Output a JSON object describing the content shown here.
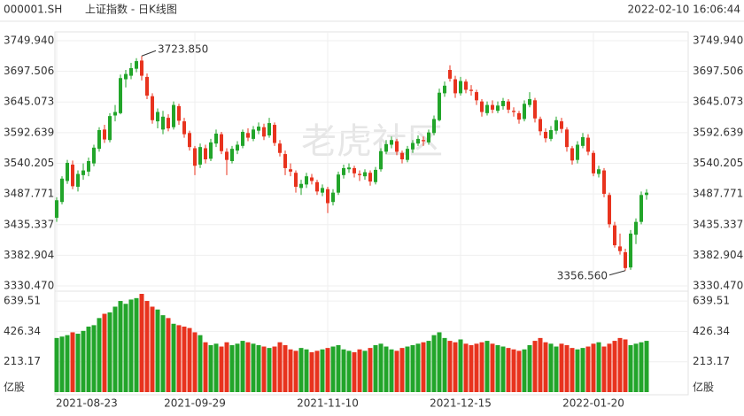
{
  "header": {
    "symbol": "000001.SH",
    "name": "上证指数 - 日K线图",
    "timestamp": "2022-02-10 16:06:44"
  },
  "watermark": "老虎社区",
  "chart_data": [
    {
      "type": "candlestick",
      "up_color": "#22a52a",
      "down_color": "#e8331e",
      "grid": true,
      "categories": [
        "2021-08-23",
        null,
        null,
        null,
        null,
        null,
        null,
        null,
        null,
        null,
        null,
        null,
        null,
        null,
        null,
        null,
        null,
        null,
        null,
        null,
        null,
        null,
        null,
        null,
        null,
        null,
        "2021-09-29",
        null,
        null,
        null,
        null,
        null,
        null,
        null,
        null,
        null,
        null,
        null,
        null,
        null,
        null,
        null,
        null,
        null,
        null,
        null,
        null,
        null,
        null,
        null,
        null,
        "2021-11-10",
        null,
        null,
        null,
        null,
        null,
        null,
        null,
        null,
        null,
        null,
        null,
        null,
        null,
        null,
        null,
        null,
        null,
        null,
        null,
        null,
        null,
        null,
        null,
        null,
        "2021-12-15",
        null,
        null,
        null,
        null,
        null,
        null,
        null,
        null,
        null,
        null,
        null,
        null,
        null,
        null,
        null,
        null,
        null,
        null,
        null,
        null,
        null,
        null,
        null,
        null,
        "2022-01-20",
        null,
        null,
        null,
        null,
        null,
        null,
        null,
        null,
        null,
        null
      ],
      "candles": [
        [
          3447,
          3482,
          3440,
          3477
        ],
        [
          3474,
          3518,
          3470,
          3514
        ],
        [
          3510,
          3546,
          3505,
          3541
        ],
        [
          3538,
          3545,
          3496,
          3501
        ],
        [
          3500,
          3528,
          3492,
          3522
        ],
        [
          3520,
          3540,
          3512,
          3528
        ],
        [
          3526,
          3550,
          3518,
          3544
        ],
        [
          3540,
          3572,
          3535,
          3567
        ],
        [
          3565,
          3602,
          3560,
          3597
        ],
        [
          3598,
          3606,
          3575,
          3581
        ],
        [
          3580,
          3626,
          3576,
          3621
        ],
        [
          3622,
          3640,
          3612,
          3628
        ],
        [
          3626,
          3692,
          3624,
          3686
        ],
        [
          3684,
          3700,
          3670,
          3693
        ],
        [
          3690,
          3712,
          3684,
          3703
        ],
        [
          3702,
          3720,
          3696,
          3715
        ],
        [
          3716,
          3723.85,
          3682,
          3690
        ],
        [
          3688,
          3694,
          3650,
          3656
        ],
        [
          3655,
          3660,
          3608,
          3614
        ],
        [
          3612,
          3634,
          3600,
          3628
        ],
        [
          3598,
          3630,
          3590,
          3620
        ],
        [
          3618,
          3624,
          3595,
          3600
        ],
        [
          3602,
          3646,
          3598,
          3640
        ],
        [
          3638,
          3642,
          3606,
          3613
        ],
        [
          3612,
          3618,
          3584,
          3590
        ],
        [
          3592,
          3596,
          3562,
          3568
        ],
        [
          3566,
          3570,
          3520,
          3536
        ],
        [
          3538,
          3574,
          3532,
          3568
        ],
        [
          3566,
          3572,
          3540,
          3547
        ],
        [
          3548,
          3582,
          3544,
          3576
        ],
        [
          3574,
          3598,
          3568,
          3591
        ],
        [
          3590,
          3594,
          3556,
          3561
        ],
        [
          3560,
          3566,
          3520,
          3546
        ],
        [
          3544,
          3570,
          3540,
          3565
        ],
        [
          3562,
          3578,
          3556,
          3572
        ],
        [
          3570,
          3598,
          3566,
          3594
        ],
        [
          3592,
          3600,
          3578,
          3584
        ],
        [
          3582,
          3604,
          3578,
          3598
        ],
        [
          3596,
          3610,
          3590,
          3603
        ],
        [
          3602,
          3608,
          3580,
          3586
        ],
        [
          3588,
          3618,
          3584,
          3609
        ],
        [
          3606,
          3610,
          3570,
          3575
        ],
        [
          3574,
          3580,
          3552,
          3558
        ],
        [
          3556,
          3562,
          3520,
          3532
        ],
        [
          3530,
          3540,
          3518,
          3526
        ],
        [
          3524,
          3528,
          3490,
          3500
        ],
        [
          3498,
          3512,
          3486,
          3505
        ],
        [
          3504,
          3524,
          3498,
          3518
        ],
        [
          3516,
          3522,
          3504,
          3510
        ],
        [
          3508,
          3512,
          3486,
          3492
        ],
        [
          3490,
          3504,
          3484,
          3498
        ],
        [
          3496,
          3500,
          3455,
          3472
        ],
        [
          3474,
          3496,
          3468,
          3490
        ],
        [
          3490,
          3526,
          3486,
          3521
        ],
        [
          3520,
          3538,
          3514,
          3532
        ],
        [
          3530,
          3540,
          3524,
          3533
        ],
        [
          3532,
          3536,
          3516,
          3523
        ],
        [
          3522,
          3528,
          3510,
          3520
        ],
        [
          3518,
          3530,
          3512,
          3525
        ],
        [
          3524,
          3528,
          3502,
          3509
        ],
        [
          3508,
          3534,
          3504,
          3529
        ],
        [
          3530,
          3566,
          3526,
          3561
        ],
        [
          3560,
          3580,
          3556,
          3573
        ],
        [
          3572,
          3586,
          3566,
          3580
        ],
        [
          3578,
          3582,
          3554,
          3560
        ],
        [
          3558,
          3562,
          3540,
          3547
        ],
        [
          3546,
          3570,
          3542,
          3565
        ],
        [
          3564,
          3580,
          3558,
          3575
        ],
        [
          3574,
          3588,
          3570,
          3582
        ],
        [
          3580,
          3586,
          3570,
          3578
        ],
        [
          3576,
          3598,
          3572,
          3593
        ],
        [
          3592,
          3622,
          3588,
          3616
        ],
        [
          3614,
          3668,
          3612,
          3661
        ],
        [
          3660,
          3680,
          3654,
          3673
        ],
        [
          3700,
          3708,
          3680,
          3685
        ],
        [
          3684,
          3690,
          3652,
          3660
        ],
        [
          3660,
          3688,
          3656,
          3681
        ],
        [
          3680,
          3684,
          3660,
          3666
        ],
        [
          3666,
          3674,
          3656,
          3664
        ],
        [
          3662,
          3666,
          3640,
          3648
        ],
        [
          3646,
          3650,
          3620,
          3628
        ],
        [
          3626,
          3646,
          3622,
          3640
        ],
        [
          3640,
          3648,
          3626,
          3632
        ],
        [
          3630,
          3646,
          3626,
          3639
        ],
        [
          3638,
          3652,
          3632,
          3647
        ],
        [
          3646,
          3650,
          3626,
          3632
        ],
        [
          3630,
          3636,
          3620,
          3628
        ],
        [
          3626,
          3630,
          3608,
          3615
        ],
        [
          3616,
          3648,
          3612,
          3642
        ],
        [
          3640,
          3662,
          3636,
          3650
        ],
        [
          3648,
          3652,
          3610,
          3617
        ],
        [
          3616,
          3620,
          3588,
          3595
        ],
        [
          3594,
          3600,
          3576,
          3583
        ],
        [
          3582,
          3604,
          3578,
          3597
        ],
        [
          3596,
          3620,
          3590,
          3614
        ],
        [
          3612,
          3618,
          3592,
          3599
        ],
        [
          3598,
          3602,
          3560,
          3568
        ],
        [
          3566,
          3570,
          3538,
          3545
        ],
        [
          3546,
          3578,
          3540,
          3572
        ],
        [
          3570,
          3592,
          3566,
          3585
        ],
        [
          3584,
          3590,
          3554,
          3560
        ],
        [
          3558,
          3562,
          3518,
          3523
        ],
        [
          3522,
          3536,
          3516,
          3530
        ],
        [
          3528,
          3532,
          3482,
          3488
        ],
        [
          3486,
          3490,
          3430,
          3436
        ],
        [
          3434,
          3440,
          3396,
          3400
        ],
        [
          3398,
          3420,
          3384,
          3390
        ],
        [
          3388,
          3394,
          3356.56,
          3361
        ],
        [
          3362,
          3426,
          3358,
          3420
        ],
        [
          3418,
          3446,
          3402,
          3440
        ],
        [
          3440,
          3492,
          3436,
          3486
        ],
        [
          3486,
          3496,
          3478,
          3490
        ]
      ],
      "ylim": [
        3330.47,
        3749.94
      ],
      "yticks": [
        {
          "value": 3749.94,
          "label": "3749.940"
        },
        3697.506,
        3645.073,
        3592.639,
        3540.205,
        3487.771,
        3435.337,
        3382.904,
        {
          "value": 3330.47,
          "label": "3330.470"
        }
      ],
      "annotations": [
        {
          "label": "3723.850",
          "value": 3723.85
        },
        {
          "label": "3356.560",
          "value": 3356.56
        }
      ]
    },
    {
      "type": "bar",
      "y_unit": "亿股",
      "values": [
        380,
        390,
        400,
        420,
        410,
        430,
        460,
        470,
        520,
        550,
        560,
        600,
        640,
        620,
        650,
        660,
        690,
        640,
        600,
        580,
        540,
        520,
        480,
        470,
        460,
        450,
        420,
        400,
        350,
        330,
        340,
        320,
        350,
        330,
        340,
        360,
        350,
        340,
        330,
        320,
        310,
        320,
        350,
        330,
        300,
        290,
        310,
        300,
        280,
        290,
        300,
        310,
        320,
        330,
        300,
        290,
        280,
        300,
        290,
        310,
        330,
        340,
        320,
        300,
        290,
        310,
        320,
        330,
        340,
        350,
        360,
        400,
        420,
        380,
        360,
        350,
        370,
        340,
        330,
        340,
        350,
        360,
        340,
        330,
        320,
        310,
        300,
        290,
        300,
        330,
        360,
        380,
        350,
        340,
        320,
        340,
        330,
        310,
        300,
        310,
        320,
        340,
        350,
        320,
        340,
        360,
        380,
        370,
        330,
        340,
        350,
        360
      ],
      "ylim": [
        0,
        690
      ],
      "yticks": [
        213.17,
        426.34,
        639.51
      ]
    }
  ]
}
